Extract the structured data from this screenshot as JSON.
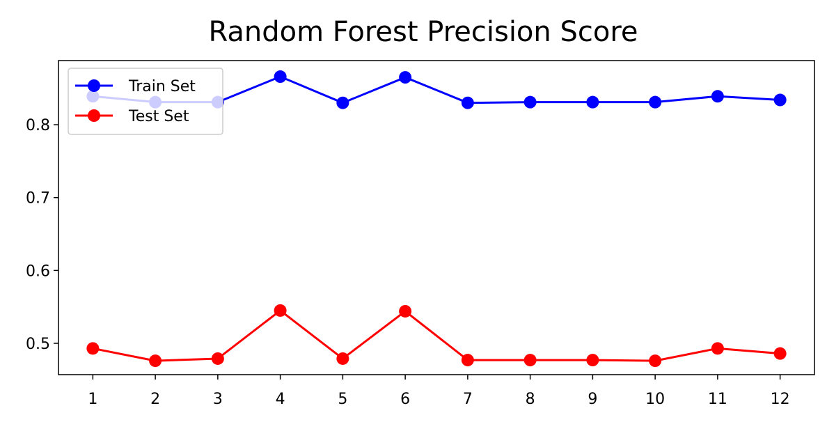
{
  "chart_data": {
    "type": "line",
    "title": "Random Forest Precision Score",
    "xlabel": "",
    "ylabel": "",
    "categories": [
      "1",
      "2",
      "3",
      "4",
      "5",
      "6",
      "7",
      "8",
      "9",
      "10",
      "11",
      "12"
    ],
    "x": [
      1,
      2,
      3,
      4,
      5,
      6,
      7,
      8,
      9,
      10,
      11,
      12
    ],
    "xlim": [
      0.45,
      12.55
    ],
    "ylim": [
      0.457,
      0.888
    ],
    "yticks": [
      0.5,
      0.6,
      0.7,
      0.8
    ],
    "ytick_labels": [
      "0.5",
      "0.6",
      "0.7",
      "0.8"
    ],
    "grid": false,
    "legend_position": "top-left",
    "series": [
      {
        "name": "Train Set",
        "color": "#0000ff",
        "marker": "circle",
        "values": [
          0.839,
          0.831,
          0.831,
          0.866,
          0.83,
          0.865,
          0.83,
          0.831,
          0.831,
          0.831,
          0.839,
          0.834
        ]
      },
      {
        "name": "Test Set",
        "color": "#ff0000",
        "marker": "circle",
        "values": [
          0.493,
          0.476,
          0.479,
          0.545,
          0.479,
          0.544,
          0.477,
          0.477,
          0.477,
          0.476,
          0.493,
          0.486
        ]
      }
    ]
  }
}
